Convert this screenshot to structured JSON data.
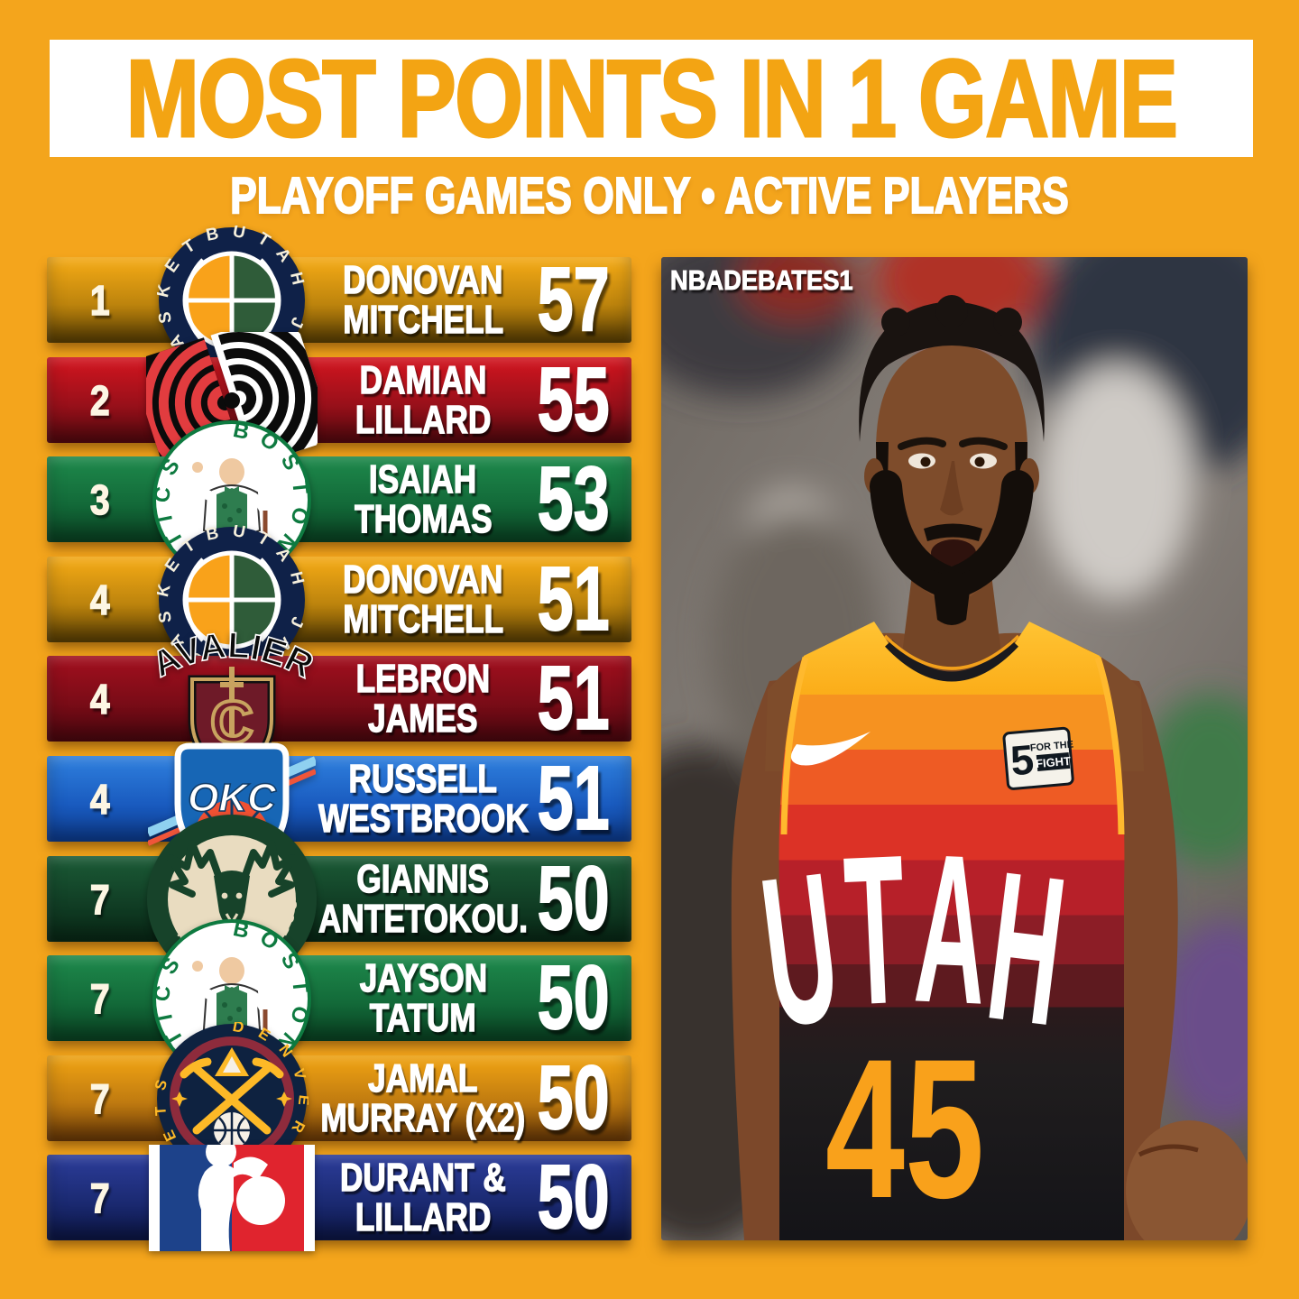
{
  "page": {
    "background": "#F4A51C",
    "band_color": "#FFFFFF",
    "title_color": "#F3A413"
  },
  "header": {
    "title": "MOST POINTS IN 1 GAME",
    "subtitle": "PLAYOFF GAMES ONLY • ACTIVE PLAYERS"
  },
  "photo": {
    "watermark": "NBADEBATES1",
    "jersey_team": "UTAH",
    "jersey_number": "45",
    "patch_number": "5",
    "patch_line1": "FOR THE",
    "patch_line2": "FIGHT"
  },
  "leaderboard": {
    "rows": [
      {
        "rank": "1",
        "team": "jazz",
        "team_name": "Utah Jazz",
        "logo_text": "UTAH JAZZ BASKETBALL",
        "player_line1": "DONOVAN",
        "player_line2": "MITCHELL",
        "points": "57",
        "colors": [
          "#F7AC16",
          "#BD840D",
          "#5E4203"
        ]
      },
      {
        "rank": "2",
        "team": "blazers",
        "team_name": "Portland Trail Blazers",
        "logo_text": "",
        "player_line1": "DAMIAN",
        "player_line2": "LILLARD",
        "points": "55",
        "colors": [
          "#D4151F",
          "#99101A",
          "#57090F"
        ]
      },
      {
        "rank": "3",
        "team": "celtics",
        "team_name": "Boston Celtics",
        "logo_text": "BOSTON CELTICS",
        "player_line1": "ISAIAH",
        "player_line2": "THOMAS",
        "points": "53",
        "colors": [
          "#1E8A4C",
          "#136A39",
          "#0A4524"
        ]
      },
      {
        "rank": "4",
        "team": "jazz",
        "team_name": "Utah Jazz",
        "logo_text": "UTAH JAZZ BASKETBALL",
        "player_line1": "DONOVAN",
        "player_line2": "MITCHELL",
        "points": "51",
        "colors": [
          "#F7AC16",
          "#BD840D",
          "#5E4203"
        ]
      },
      {
        "rank": "4",
        "team": "cavs",
        "team_name": "Cleveland Cavaliers",
        "logo_text": "CAVALIERS",
        "player_line1": "LEBRON",
        "player_line2": "JAMES",
        "points": "51",
        "colors": [
          "#A30F1E",
          "#7A0C17",
          "#4E070F"
        ]
      },
      {
        "rank": "4",
        "team": "okc",
        "team_name": "Oklahoma City Thunder",
        "logo_text": "OKC",
        "player_line1": "RUSSELL",
        "player_line2": "WESTBROOK",
        "points": "51",
        "colors": [
          "#2F80DE",
          "#1A5CC0",
          "#0D3E96"
        ]
      },
      {
        "rank": "7",
        "team": "bucks",
        "team_name": "Milwaukee Bucks",
        "logo_text": "MILWAUKEE BUCKS",
        "player_line1": "GIANNIS",
        "player_line2": "ANTETOKOU.",
        "points": "50",
        "colors": [
          "#1B5B36",
          "#113E25",
          "#092A17"
        ]
      },
      {
        "rank": "7",
        "team": "celtics",
        "team_name": "Boston Celtics",
        "logo_text": "BOSTON CELTICS",
        "player_line1": "JAYSON",
        "player_line2": "TATUM",
        "points": "50",
        "colors": [
          "#1E8A4C",
          "#136A39",
          "#0A4524"
        ]
      },
      {
        "rank": "7",
        "team": "nuggets",
        "team_name": "Denver Nuggets",
        "logo_text": "DENVER NUGGETS",
        "player_line1": "JAMAL",
        "player_line2": "MURRAY (X2)",
        "points": "50",
        "colors": [
          "#F2A513",
          "#BF7A10",
          "#6E3B07"
        ]
      },
      {
        "rank": "7",
        "team": "nba",
        "team_name": "NBA",
        "logo_text": "",
        "player_line1": "DURANT &",
        "player_line2": "LILLARD",
        "points": "50",
        "colors": [
          "#2C3D9A",
          "#1B2A72",
          "#0D1748"
        ]
      }
    ]
  },
  "chart_data": {
    "type": "table",
    "title": "MOST POINTS IN 1 GAME",
    "subtitle": "PLAYOFF GAMES ONLY • ACTIVE PLAYERS",
    "columns": [
      "Rank",
      "Team",
      "Player",
      "Points"
    ],
    "rows": [
      [
        "1",
        "Utah Jazz",
        "Donovan Mitchell",
        57
      ],
      [
        "2",
        "Portland Trail Blazers",
        "Damian Lillard",
        55
      ],
      [
        "3",
        "Boston Celtics",
        "Isaiah Thomas",
        53
      ],
      [
        "4",
        "Utah Jazz",
        "Donovan Mitchell",
        51
      ],
      [
        "4",
        "Cleveland Cavaliers",
        "LeBron James",
        51
      ],
      [
        "4",
        "Oklahoma City Thunder",
        "Russell Westbrook",
        51
      ],
      [
        "7",
        "Milwaukee Bucks",
        "Giannis Antetokou.",
        50
      ],
      [
        "7",
        "Boston Celtics",
        "Jayson Tatum",
        50
      ],
      [
        "7",
        "Denver Nuggets",
        "Jamal Murray (x2)",
        50
      ],
      [
        "7",
        "NBA",
        "Durant & Lillard",
        50
      ]
    ]
  }
}
